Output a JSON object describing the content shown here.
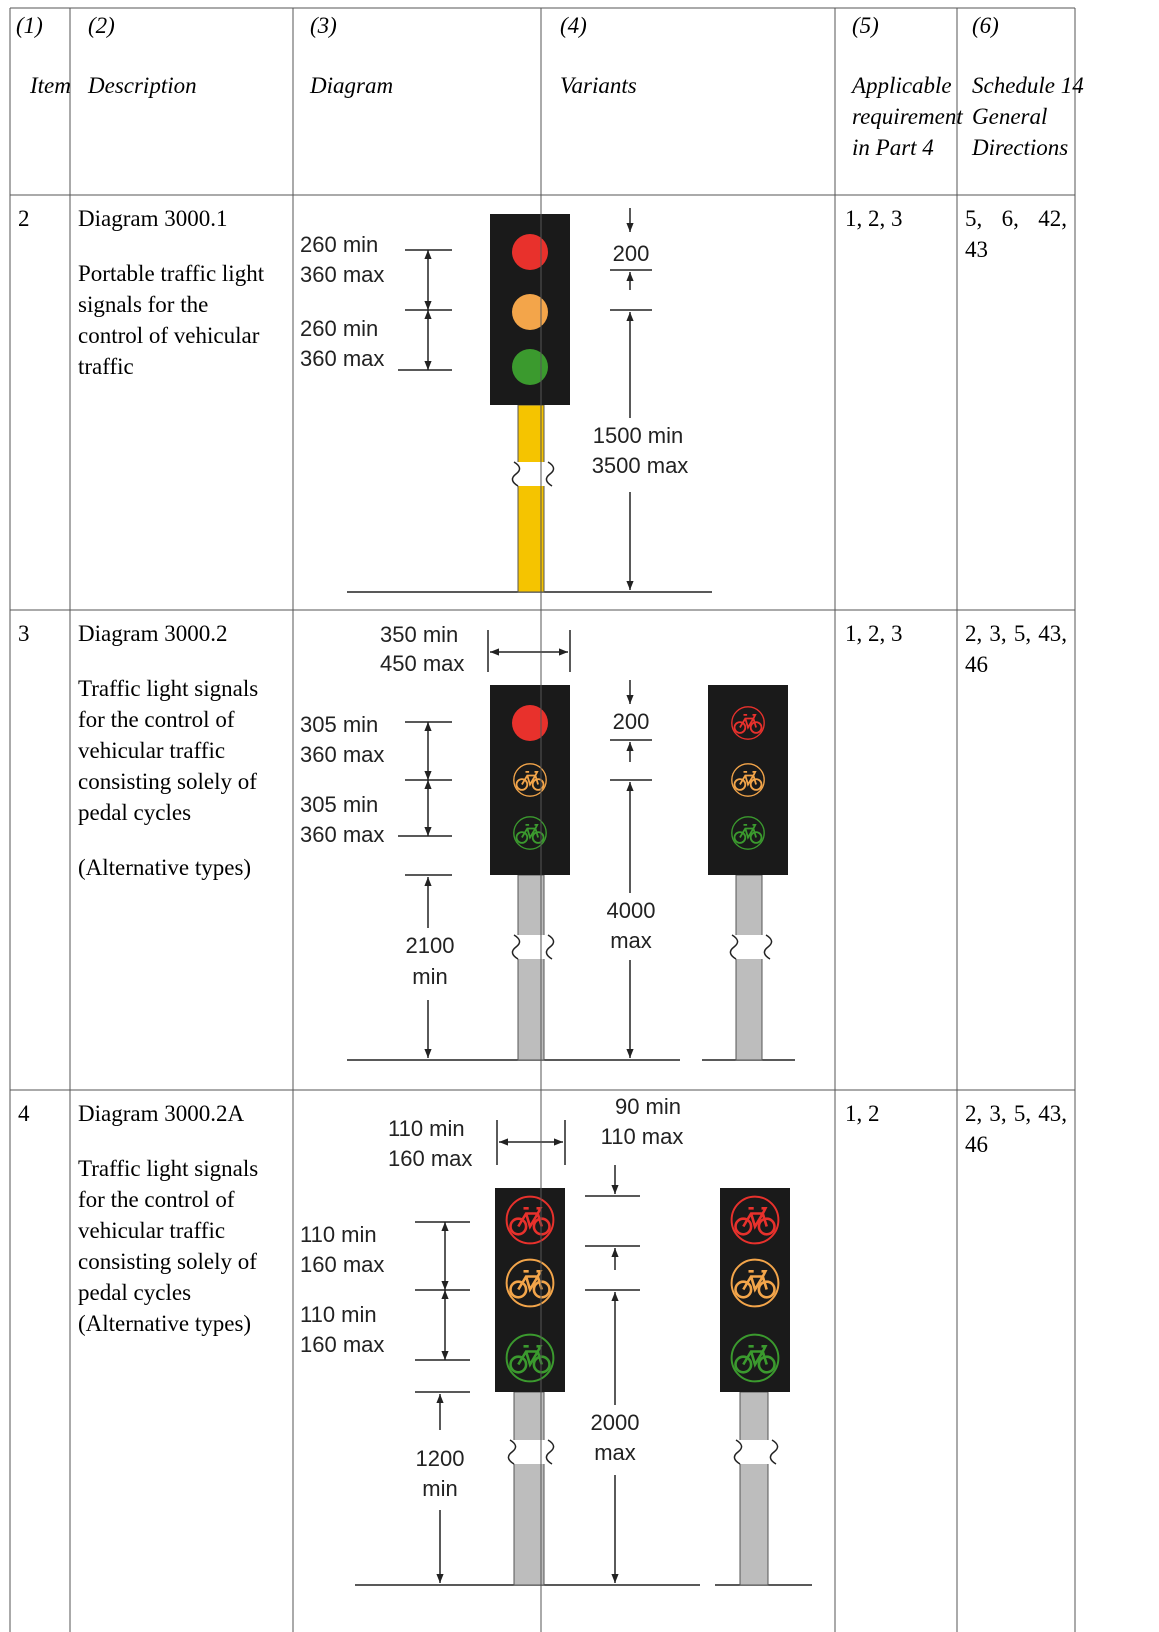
{
  "table": {
    "columns": [
      {
        "number": "(1)",
        "title": "Item"
      },
      {
        "number": "(2)",
        "title": "Description"
      },
      {
        "number": "(3)",
        "title": "Diagram"
      },
      {
        "number": "(4)",
        "title": "Variants"
      },
      {
        "number": "(5)",
        "title": "Applicable requirement in Part 4"
      },
      {
        "number": "(6)",
        "title": "Schedule 14 General Directions"
      }
    ],
    "rows": [
      {
        "item": "2",
        "description": [
          "Diagram 3000.1",
          "Portable traffic light signals for the control of vehicular traffic"
        ],
        "diagram_labels": [
          "260 min",
          "360 max",
          "260 min",
          "360 max",
          "200",
          "1500 min",
          "3500 max"
        ],
        "part4": "1, 2, 3",
        "directions": "5, 6, 42, 43"
      },
      {
        "item": "3",
        "description": [
          "Diagram 3000.2",
          "Traffic light signals for the control of vehicular traffic consisting solely of pedal cycles",
          "(Alternative types)"
        ],
        "diagram_labels": [
          "350 min",
          "450 max",
          "305 min",
          "360 max",
          "305 min",
          "360 max",
          "200",
          "2100",
          "min",
          "4000",
          "max"
        ],
        "part4": "1, 2, 3",
        "directions": "2, 3, 5, 43, 46"
      },
      {
        "item": "4",
        "description": [
          "Diagram 3000.2A",
          "Traffic light signals for the control of vehicular traffic consisting solely of pedal cycles (Alternative types)"
        ],
        "diagram_labels": [
          "110 min",
          "160 max",
          "90 min",
          "110 max",
          "110 min",
          "160 max",
          "110 min",
          "160 max",
          "1200",
          "min",
          "2000",
          "max"
        ],
        "part4": "1, 2",
        "directions": "2, 3, 5, 43, 46"
      }
    ]
  }
}
